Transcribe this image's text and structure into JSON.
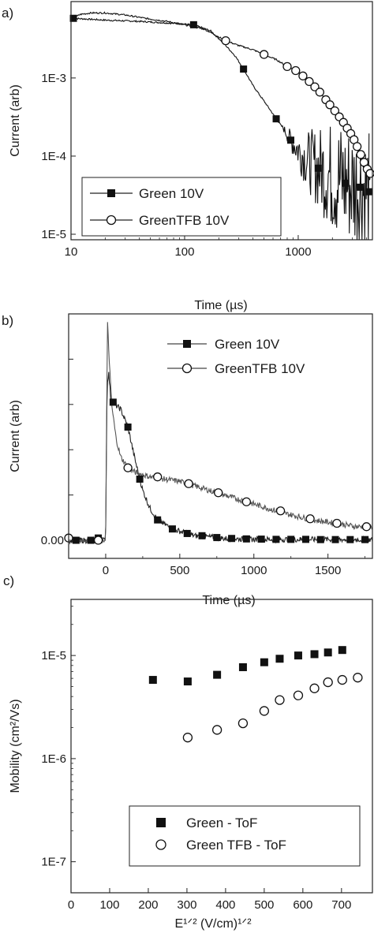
{
  "chart_data": [
    {
      "panel_label": "a)",
      "type": "line",
      "x_scale": "log",
      "y_scale": "log",
      "xlabel": "Time (µs)",
      "ylabel": "Current (arb)",
      "xlim": [
        10,
        4500
      ],
      "ylim": [
        8.5e-06,
        0.0095
      ],
      "x_ticks": [
        {
          "v": 10,
          "label": "10"
        },
        {
          "v": 100,
          "label": "100"
        },
        {
          "v": 1000,
          "label": "1000"
        }
      ],
      "y_ticks": [
        {
          "v": 0.001,
          "label": "1E-3"
        },
        {
          "v": 0.0001,
          "label": "1E-4"
        },
        {
          "v": 1e-05,
          "label": "1E-5"
        }
      ],
      "legend": {
        "position": "bottom-left"
      },
      "series": [
        {
          "name": "Green 10V",
          "marker": "filled-square",
          "points": [
            [
              10.5,
              0.0058
            ],
            [
              20,
              0.0055
            ],
            [
              40,
              0.0053
            ],
            [
              80,
              0.005
            ],
            [
              120,
              0.0048
            ],
            [
              170,
              0.004
            ],
            [
              220,
              0.0028
            ],
            [
              280,
              0.0019
            ],
            [
              330,
              0.0013
            ],
            [
              400,
              0.0008
            ],
            [
              480,
              0.00055
            ],
            [
              560,
              0.0004
            ],
            [
              640,
              0.0003
            ],
            [
              750,
              0.00022
            ],
            [
              860,
              0.00016
            ],
            [
              1000,
              0.00012
            ],
            [
              1200,
              9e-05
            ],
            [
              1500,
              7e-05
            ],
            [
              2000,
              5.5e-05
            ],
            [
              2600,
              4.5e-05
            ],
            [
              3500,
              4e-05
            ],
            [
              4200,
              3.5e-05
            ]
          ],
          "markers_at": [
            10.5,
            120,
            330,
            640,
            860,
            1500,
            2600,
            3500,
            4200
          ],
          "noise_from_x": 700
        },
        {
          "name": "GreenTFB 10V",
          "marker": "open-circle",
          "points": [
            [
              10.5,
              0.0058
            ],
            [
              12,
              0.0065
            ],
            [
              15,
              0.0068
            ],
            [
              20,
              0.0068
            ],
            [
              30,
              0.0064
            ],
            [
              45,
              0.0058
            ],
            [
              70,
              0.0053
            ],
            [
              100,
              0.0048
            ],
            [
              150,
              0.0042
            ],
            [
              230,
              0.003
            ],
            [
              300,
              0.0026
            ],
            [
              400,
              0.0023
            ],
            [
              500,
              0.002
            ],
            [
              650,
              0.0017
            ],
            [
              800,
              0.0014
            ],
            [
              1000,
              0.0012
            ],
            [
              1250,
              0.0009
            ],
            [
              1500,
              0.0007
            ],
            [
              1800,
              0.0005
            ],
            [
              2100,
              0.00038
            ],
            [
              2500,
              0.00027
            ],
            [
              3000,
              0.00018
            ],
            [
              3500,
              0.00011
            ],
            [
              4000,
              7e-05
            ],
            [
              4300,
              6e-05
            ]
          ],
          "markers_at": [
            230,
            500,
            800,
            950,
            1100,
            1250,
            1400,
            1550,
            1750,
            1900,
            2100,
            2300,
            2500,
            2700,
            2900,
            3100,
            3300,
            3550,
            3800,
            4050,
            4300
          ],
          "noise_from_x": 1500
        }
      ]
    },
    {
      "panel_label": "b)",
      "type": "line",
      "xlabel": "Time (µs)",
      "ylabel": "Current (arb)",
      "xlim": [
        -250,
        1800
      ],
      "ylim": [
        -0.08,
        1.0
      ],
      "x_ticks": [
        {
          "v": 0,
          "label": "0"
        },
        {
          "v": 500,
          "label": "500"
        },
        {
          "v": 1000,
          "label": "1000"
        },
        {
          "v": 1500,
          "label": "1500"
        }
      ],
      "y_ticks": [
        {
          "v": 0,
          "label": "0.00"
        }
      ],
      "legend": {
        "position": "top-right"
      },
      "series": [
        {
          "name": "Green 10V",
          "marker": "filled-square",
          "points": [
            [
              -250,
              0
            ],
            [
              -5,
              0
            ],
            [
              0,
              0.05
            ],
            [
              10,
              0.7
            ],
            [
              20,
              0.74
            ],
            [
              35,
              0.62
            ],
            [
              60,
              0.6
            ],
            [
              100,
              0.58
            ],
            [
              150,
              0.5
            ],
            [
              200,
              0.35
            ],
            [
              250,
              0.22
            ],
            [
              300,
              0.14
            ],
            [
              350,
              0.09
            ],
            [
              450,
              0.05
            ],
            [
              600,
              0.02
            ],
            [
              800,
              0.008
            ],
            [
              1000,
              0.004
            ],
            [
              1800,
              0.003
            ]
          ],
          "markers": [
            [
              -200,
              0
            ],
            [
              -100,
              0
            ],
            [
              -50,
              0.01
            ],
            [
              50,
              0.61
            ],
            [
              150,
              0.5
            ],
            [
              230,
              0.27
            ],
            [
              350,
              0.09
            ],
            [
              450,
              0.05
            ],
            [
              550,
              0.03
            ],
            [
              650,
              0.02
            ],
            [
              750,
              0.012
            ],
            [
              850,
              0.008
            ],
            [
              950,
              0.006
            ],
            [
              1050,
              0.005
            ],
            [
              1150,
              0.004
            ],
            [
              1250,
              0.004
            ],
            [
              1350,
              0.004
            ],
            [
              1450,
              0.003
            ],
            [
              1550,
              0.003
            ],
            [
              1650,
              0.003
            ],
            [
              1750,
              0.003
            ]
          ]
        },
        {
          "name": "GreenTFB 10V",
          "marker": "open-circle",
          "points": [
            [
              -250,
              0
            ],
            [
              -5,
              0
            ],
            [
              0,
              0.05
            ],
            [
              12,
              0.96
            ],
            [
              20,
              0.85
            ],
            [
              40,
              0.6
            ],
            [
              70,
              0.45
            ],
            [
              100,
              0.37
            ],
            [
              150,
              0.32
            ],
            [
              200,
              0.3
            ],
            [
              300,
              0.28
            ],
            [
              400,
              0.27
            ],
            [
              500,
              0.26
            ],
            [
              600,
              0.24
            ],
            [
              700,
              0.22
            ],
            [
              800,
              0.2
            ],
            [
              900,
              0.18
            ],
            [
              1000,
              0.16
            ],
            [
              1100,
              0.14
            ],
            [
              1200,
              0.12
            ],
            [
              1300,
              0.105
            ],
            [
              1400,
              0.09
            ],
            [
              1500,
              0.08
            ],
            [
              1600,
              0.07
            ],
            [
              1700,
              0.06
            ],
            [
              1800,
              0.06
            ]
          ],
          "markers": [
            [
              -250,
              0.01
            ],
            [
              -50,
              0.0
            ],
            [
              150,
              0.32
            ],
            [
              350,
              0.28
            ],
            [
              560,
              0.25
            ],
            [
              760,
              0.21
            ],
            [
              950,
              0.17
            ],
            [
              1180,
              0.13
            ],
            [
              1380,
              0.095
            ],
            [
              1560,
              0.075
            ],
            [
              1760,
              0.06
            ]
          ]
        }
      ]
    },
    {
      "panel_label": "c)",
      "type": "scatter",
      "y_scale": "log",
      "xlabel": "E¹ᐟ² (V/cm)¹ᐟ²",
      "ylabel": "Mobility (cm²/Vs)",
      "xlim": [
        0,
        780
      ],
      "ylim": [
        5e-08,
        3.5e-05
      ],
      "x_ticks": [
        {
          "v": 0,
          "label": "0"
        },
        {
          "v": 100,
          "label": "100"
        },
        {
          "v": 200,
          "label": "200"
        },
        {
          "v": 300,
          "label": "300"
        },
        {
          "v": 400,
          "label": "400"
        },
        {
          "v": 500,
          "label": "500"
        },
        {
          "v": 600,
          "label": "600"
        },
        {
          "v": 700,
          "label": "700"
        }
      ],
      "y_ticks": [
        {
          "v": 1e-05,
          "label": "1E-5"
        },
        {
          "v": 1e-06,
          "label": "1E-6"
        },
        {
          "v": 1e-07,
          "label": "1E-7"
        }
      ],
      "legend": {
        "position": "bottom-right"
      },
      "series": [
        {
          "name": "Green - ToF",
          "marker": "filled-square",
          "points": [
            [
              212,
              5.8e-06
            ],
            [
              302,
              5.6e-06
            ],
            [
              378,
              6.5e-06
            ],
            [
              445,
              7.7e-06
            ],
            [
              500,
              8.6e-06
            ],
            [
              540,
              9.3e-06
            ],
            [
              588,
              1e-05
            ],
            [
              630,
              1.03e-05
            ],
            [
              665,
              1.07e-05
            ],
            [
              702,
              1.13e-05
            ]
          ]
        },
        {
          "name": "Green TFB - ToF",
          "marker": "open-circle",
          "points": [
            [
              302,
              1.6e-06
            ],
            [
              378,
              1.9e-06
            ],
            [
              445,
              2.2e-06
            ],
            [
              500,
              2.9e-06
            ],
            [
              540,
              3.7e-06
            ],
            [
              588,
              4.1e-06
            ],
            [
              630,
              4.8e-06
            ],
            [
              665,
              5.5e-06
            ],
            [
              702,
              5.8e-06
            ],
            [
              742,
              6.1e-06
            ]
          ]
        }
      ]
    }
  ]
}
